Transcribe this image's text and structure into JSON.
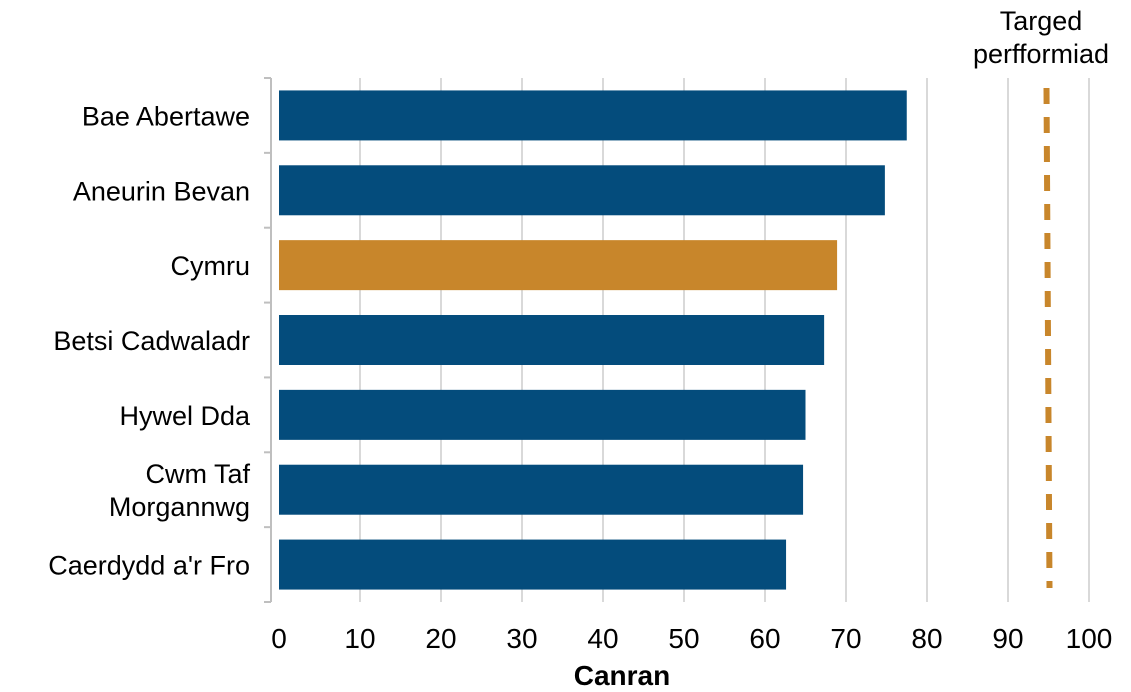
{
  "chart_data": {
    "type": "bar",
    "orientation": "horizontal",
    "categories": [
      "Bae Abertawe",
      "Aneurin Bevan",
      "Cymru",
      "Betsi Cadwaladr",
      "Hywel Dda",
      "Cwm Taf\nMorgannwg",
      "Caerdydd a'r Fro"
    ],
    "values": [
      77.5,
      74.8,
      68.9,
      67.3,
      65.0,
      64.7,
      62.6
    ],
    "highlight_index": 2,
    "xlabel": "Canran",
    "xlim": [
      0,
      100
    ],
    "xticks": [
      "0",
      "10",
      "20",
      "30",
      "40",
      "50",
      "60",
      "70",
      "80",
      "90",
      "100"
    ],
    "grid": true,
    "target": {
      "label": "Targed\nperfformiad",
      "value": 95
    },
    "colors": {
      "bar": "#044c7c",
      "highlight": "#c8862b",
      "target": "#c8862b",
      "grid": "#d9d9d9",
      "axis": "#bfbfbf"
    }
  }
}
